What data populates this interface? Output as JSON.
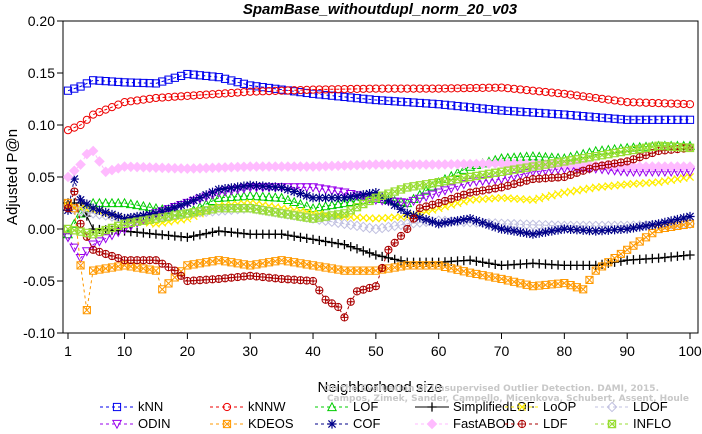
{
  "chart_data": {
    "type": "line",
    "title": "SpamBase_withoutdupl_norm_20_v03",
    "xlabel": "Neighborhood size",
    "ylabel": "Adjusted P@n",
    "xlim": [
      1,
      100
    ],
    "ylim": [
      -0.1,
      0.2
    ],
    "x_ticks": [
      1,
      10,
      20,
      30,
      40,
      50,
      60,
      70,
      80,
      90,
      100
    ],
    "y_ticks": [
      -0.1,
      -0.05,
      0.0,
      0.05,
      0.1,
      0.15,
      0.2
    ],
    "y_tick_labels": [
      "-0.10",
      "-0.05",
      "0.00",
      "0.05",
      "0.10",
      "0.15",
      "0.20"
    ],
    "grid": false,
    "legend_position": "bottom",
    "watermark": "Campos, Zimek, Sander, Campello, Micenkova, Schubert, Assent, Houle",
    "watermark_top": "On the Evaluation of Unsupervised Outlier Detection. DAMI, 2015.",
    "series": [
      {
        "name": "kNN",
        "color": "#0000ee",
        "marker": "square",
        "line": "dashed",
        "keypoints": [
          [
            1,
            0.133
          ],
          [
            3,
            0.137
          ],
          [
            5,
            0.143
          ],
          [
            10,
            0.141
          ],
          [
            15,
            0.14
          ],
          [
            20,
            0.149
          ],
          [
            25,
            0.146
          ],
          [
            30,
            0.138
          ],
          [
            35,
            0.134
          ],
          [
            40,
            0.13
          ],
          [
            50,
            0.124
          ],
          [
            60,
            0.12
          ],
          [
            70,
            0.114
          ],
          [
            80,
            0.11
          ],
          [
            90,
            0.105
          ],
          [
            100,
            0.105
          ]
        ]
      },
      {
        "name": "kNNW",
        "color": "#ee0000",
        "marker": "circle",
        "line": "dashed",
        "keypoints": [
          [
            1,
            0.095
          ],
          [
            3,
            0.1
          ],
          [
            5,
            0.11
          ],
          [
            10,
            0.122
          ],
          [
            15,
            0.126
          ],
          [
            20,
            0.128
          ],
          [
            25,
            0.13
          ],
          [
            30,
            0.132
          ],
          [
            40,
            0.134
          ],
          [
            50,
            0.135
          ],
          [
            60,
            0.135
          ],
          [
            70,
            0.136
          ],
          [
            80,
            0.13
          ],
          [
            90,
            0.122
          ],
          [
            100,
            0.12
          ]
        ]
      },
      {
        "name": "LOF",
        "color": "#00cc00",
        "marker": "triangle-up",
        "line": "dashed",
        "keypoints": [
          [
            1,
            -0.005
          ],
          [
            3,
            0.015
          ],
          [
            5,
            0.025
          ],
          [
            10,
            0.025
          ],
          [
            15,
            0.02
          ],
          [
            20,
            0.015
          ],
          [
            25,
            0.03
          ],
          [
            30,
            0.032
          ],
          [
            35,
            0.03
          ],
          [
            40,
            0.02
          ],
          [
            45,
            0.025
          ],
          [
            50,
            0.03
          ],
          [
            55,
            0.025
          ],
          [
            60,
            0.045
          ],
          [
            65,
            0.06
          ],
          [
            70,
            0.068
          ],
          [
            75,
            0.07
          ],
          [
            80,
            0.068
          ],
          [
            85,
            0.075
          ],
          [
            90,
            0.078
          ],
          [
            95,
            0.08
          ],
          [
            100,
            0.08
          ]
        ]
      },
      {
        "name": "SimplifiedLOF",
        "color": "#000000",
        "marker": "plus",
        "line": "solid",
        "keypoints": [
          [
            1,
            0.025
          ],
          [
            3,
            0.025
          ],
          [
            5,
            0.0
          ],
          [
            10,
            -0.002
          ],
          [
            15,
            -0.005
          ],
          [
            20,
            -0.008
          ],
          [
            25,
            -0.002
          ],
          [
            30,
            -0.005
          ],
          [
            35,
            -0.005
          ],
          [
            40,
            -0.01
          ],
          [
            45,
            -0.015
          ],
          [
            50,
            -0.025
          ],
          [
            55,
            -0.032
          ],
          [
            60,
            -0.032
          ],
          [
            65,
            -0.03
          ],
          [
            70,
            -0.035
          ],
          [
            75,
            -0.033
          ],
          [
            80,
            -0.035
          ],
          [
            85,
            -0.035
          ],
          [
            90,
            -0.03
          ],
          [
            95,
            -0.028
          ],
          [
            100,
            -0.025
          ]
        ]
      },
      {
        "name": "LoOP",
        "color": "#ffee00",
        "marker": "x",
        "line": "dashed",
        "keypoints": [
          [
            1,
            0.022
          ],
          [
            5,
            0.018
          ],
          [
            10,
            0.01
          ],
          [
            15,
            0.005
          ],
          [
            20,
            0.01
          ],
          [
            25,
            0.022
          ],
          [
            30,
            0.025
          ],
          [
            35,
            0.02
          ],
          [
            40,
            0.015
          ],
          [
            45,
            0.012
          ],
          [
            50,
            0.01
          ],
          [
            55,
            0.012
          ],
          [
            60,
            0.02
          ],
          [
            65,
            0.028
          ],
          [
            70,
            0.03
          ],
          [
            75,
            0.028
          ],
          [
            80,
            0.035
          ],
          [
            85,
            0.04
          ],
          [
            90,
            0.043
          ],
          [
            95,
            0.045
          ],
          [
            100,
            0.05
          ]
        ]
      },
      {
        "name": "LDOF",
        "color": "#c0c0e0",
        "marker": "diamond",
        "line": "dashed",
        "keypoints": [
          [
            1,
            0.02
          ],
          [
            5,
            0.015
          ],
          [
            10,
            0.01
          ],
          [
            20,
            0.015
          ],
          [
            30,
            0.02
          ],
          [
            40,
            0.01
          ],
          [
            50,
            0.0
          ],
          [
            55,
            0.005
          ],
          [
            60,
            0.008
          ],
          [
            70,
            0.005
          ],
          [
            80,
            0.003
          ],
          [
            90,
            0.003
          ],
          [
            100,
            0.005
          ]
        ]
      },
      {
        "name": "ODIN",
        "color": "#9900ee",
        "marker": "triangle-down",
        "line": "dashed",
        "keypoints": [
          [
            1,
            -0.008
          ],
          [
            3,
            -0.028
          ],
          [
            5,
            -0.015
          ],
          [
            10,
            0.0
          ],
          [
            15,
            0.015
          ],
          [
            20,
            0.025
          ],
          [
            25,
            0.035
          ],
          [
            30,
            0.04
          ],
          [
            35,
            0.04
          ],
          [
            40,
            0.04
          ],
          [
            45,
            0.035
          ],
          [
            50,
            0.028
          ],
          [
            55,
            0.025
          ],
          [
            60,
            0.035
          ],
          [
            65,
            0.045
          ],
          [
            70,
            0.048
          ],
          [
            75,
            0.055
          ],
          [
            80,
            0.058
          ],
          [
            85,
            0.058
          ],
          [
            90,
            0.055
          ],
          [
            95,
            0.055
          ],
          [
            100,
            0.055
          ]
        ]
      },
      {
        "name": "KDEOS",
        "color": "#ff9900",
        "marker": "square-x",
        "line": "dashed",
        "keypoints": [
          [
            1,
            0.025
          ],
          [
            2,
            0.02
          ],
          [
            3,
            -0.035
          ],
          [
            4,
            -0.078
          ],
          [
            5,
            -0.04
          ],
          [
            10,
            -0.035
          ],
          [
            15,
            -0.04
          ],
          [
            16,
            -0.058
          ],
          [
            20,
            -0.035
          ],
          [
            25,
            -0.03
          ],
          [
            30,
            -0.035
          ],
          [
            35,
            -0.03
          ],
          [
            40,
            -0.035
          ],
          [
            45,
            -0.04
          ],
          [
            50,
            -0.04
          ],
          [
            55,
            -0.035
          ],
          [
            60,
            -0.035
          ],
          [
            65,
            -0.042
          ],
          [
            70,
            -0.048
          ],
          [
            75,
            -0.055
          ],
          [
            80,
            -0.052
          ],
          [
            83,
            -0.058
          ],
          [
            85,
            -0.04
          ],
          [
            90,
            -0.02
          ],
          [
            95,
            0.0
          ],
          [
            100,
            0.005
          ]
        ]
      },
      {
        "name": "COF",
        "color": "#000088",
        "marker": "asterisk",
        "line": "dashed",
        "keypoints": [
          [
            1,
            0.018
          ],
          [
            2,
            0.048
          ],
          [
            3,
            0.028
          ],
          [
            5,
            0.02
          ],
          [
            10,
            0.01
          ],
          [
            15,
            0.015
          ],
          [
            20,
            0.025
          ],
          [
            25,
            0.038
          ],
          [
            30,
            0.042
          ],
          [
            35,
            0.04
          ],
          [
            40,
            0.03
          ],
          [
            45,
            0.03
          ],
          [
            50,
            0.035
          ],
          [
            55,
            0.015
          ],
          [
            60,
            0.005
          ],
          [
            65,
            0.01
          ],
          [
            70,
            0.0
          ],
          [
            75,
            -0.005
          ],
          [
            80,
            0.0
          ],
          [
            85,
            -0.002
          ],
          [
            90,
            0.0
          ],
          [
            95,
            0.005
          ],
          [
            100,
            0.012
          ]
        ]
      },
      {
        "name": "FastABOD",
        "color": "#ffbbff",
        "marker": "diamond-filled",
        "line": "dashed",
        "keypoints": [
          [
            1,
            0.05
          ],
          [
            3,
            0.062
          ],
          [
            4,
            0.072
          ],
          [
            5,
            0.075
          ],
          [
            7,
            0.055
          ],
          [
            10,
            0.06
          ],
          [
            20,
            0.058
          ],
          [
            30,
            0.06
          ],
          [
            40,
            0.06
          ],
          [
            50,
            0.062
          ],
          [
            60,
            0.062
          ],
          [
            70,
            0.063
          ],
          [
            80,
            0.062
          ],
          [
            90,
            0.06
          ],
          [
            100,
            0.06
          ]
        ]
      },
      {
        "name": "LDF",
        "color": "#aa0000",
        "marker": "circle-plus",
        "line": "dashed",
        "keypoints": [
          [
            1,
            0.02
          ],
          [
            2,
            0.036
          ],
          [
            3,
            0.005
          ],
          [
            5,
            -0.02
          ],
          [
            10,
            -0.03
          ],
          [
            15,
            -0.03
          ],
          [
            18,
            -0.04
          ],
          [
            20,
            -0.05
          ],
          [
            25,
            -0.048
          ],
          [
            30,
            -0.045
          ],
          [
            35,
            -0.048
          ],
          [
            40,
            -0.05
          ],
          [
            42,
            -0.068
          ],
          [
            44,
            -0.075
          ],
          [
            45,
            -0.085
          ],
          [
            46,
            -0.07
          ],
          [
            47,
            -0.06
          ],
          [
            50,
            -0.055
          ],
          [
            52,
            -0.02
          ],
          [
            55,
            0.0
          ],
          [
            57,
            0.02
          ],
          [
            60,
            0.025
          ],
          [
            65,
            0.035
          ],
          [
            70,
            0.04
          ],
          [
            75,
            0.048
          ],
          [
            80,
            0.05
          ],
          [
            85,
            0.06
          ],
          [
            90,
            0.065
          ],
          [
            95,
            0.075
          ],
          [
            100,
            0.078
          ]
        ]
      },
      {
        "name": "INFLO",
        "color": "#99dd33",
        "marker": "square-cross",
        "line": "dashed",
        "keypoints": [
          [
            1,
            0.0
          ],
          [
            5,
            -0.005
          ],
          [
            10,
            0.005
          ],
          [
            15,
            0.01
          ],
          [
            20,
            0.015
          ],
          [
            25,
            0.02
          ],
          [
            30,
            0.02
          ],
          [
            35,
            0.015
          ],
          [
            40,
            0.01
          ],
          [
            45,
            0.015
          ],
          [
            50,
            0.03
          ],
          [
            55,
            0.04
          ],
          [
            60,
            0.045
          ],
          [
            65,
            0.05
          ],
          [
            70,
            0.055
          ],
          [
            75,
            0.06
          ],
          [
            80,
            0.065
          ],
          [
            85,
            0.07
          ],
          [
            90,
            0.075
          ],
          [
            95,
            0.08
          ],
          [
            100,
            0.078
          ]
        ]
      }
    ]
  }
}
